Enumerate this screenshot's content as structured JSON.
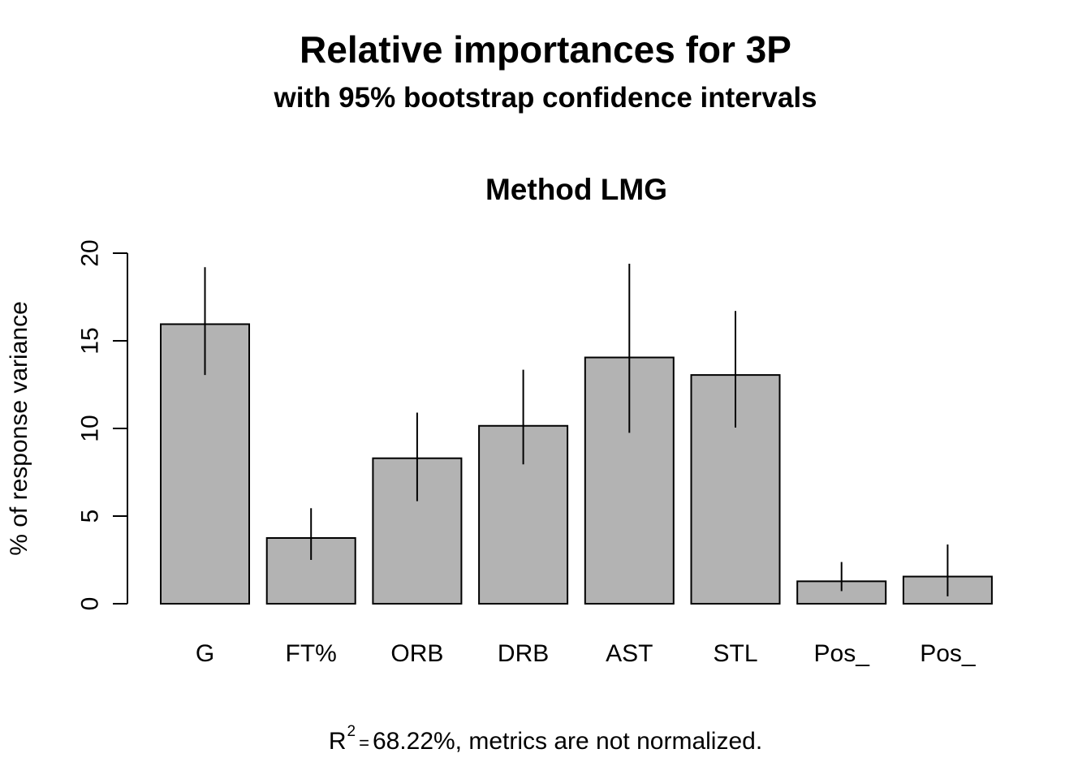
{
  "chart_data": {
    "type": "bar",
    "title": "Relative importances for 3P",
    "subtitle": "with 95% bootstrap confidence intervals",
    "panel_title": "Method LMG",
    "xlabel": "",
    "ylabel": "% of response variance",
    "ylim": [
      0,
      20
    ],
    "yticks": [
      0,
      5,
      10,
      15,
      20
    ],
    "categories": [
      "G",
      "FT%",
      "ORB",
      "DRB",
      "AST",
      "STL",
      "Pos_",
      "Pos_"
    ],
    "values": [
      15.95,
      3.75,
      8.3,
      10.15,
      14.05,
      13.05,
      1.28,
      1.55
    ],
    "ci_lower": [
      13.05,
      2.5,
      5.85,
      7.95,
      9.75,
      10.05,
      0.72,
      0.42
    ],
    "ci_upper": [
      19.2,
      5.45,
      10.9,
      13.35,
      19.4,
      16.7,
      2.38,
      3.38
    ],
    "bar_color": "#b3b3b3",
    "grid": false,
    "legend": "none",
    "footer": {
      "r_symbol": "R",
      "r_superscript": "2",
      "equals": "=",
      "text": "68.22%, metrics are not normalized."
    }
  }
}
